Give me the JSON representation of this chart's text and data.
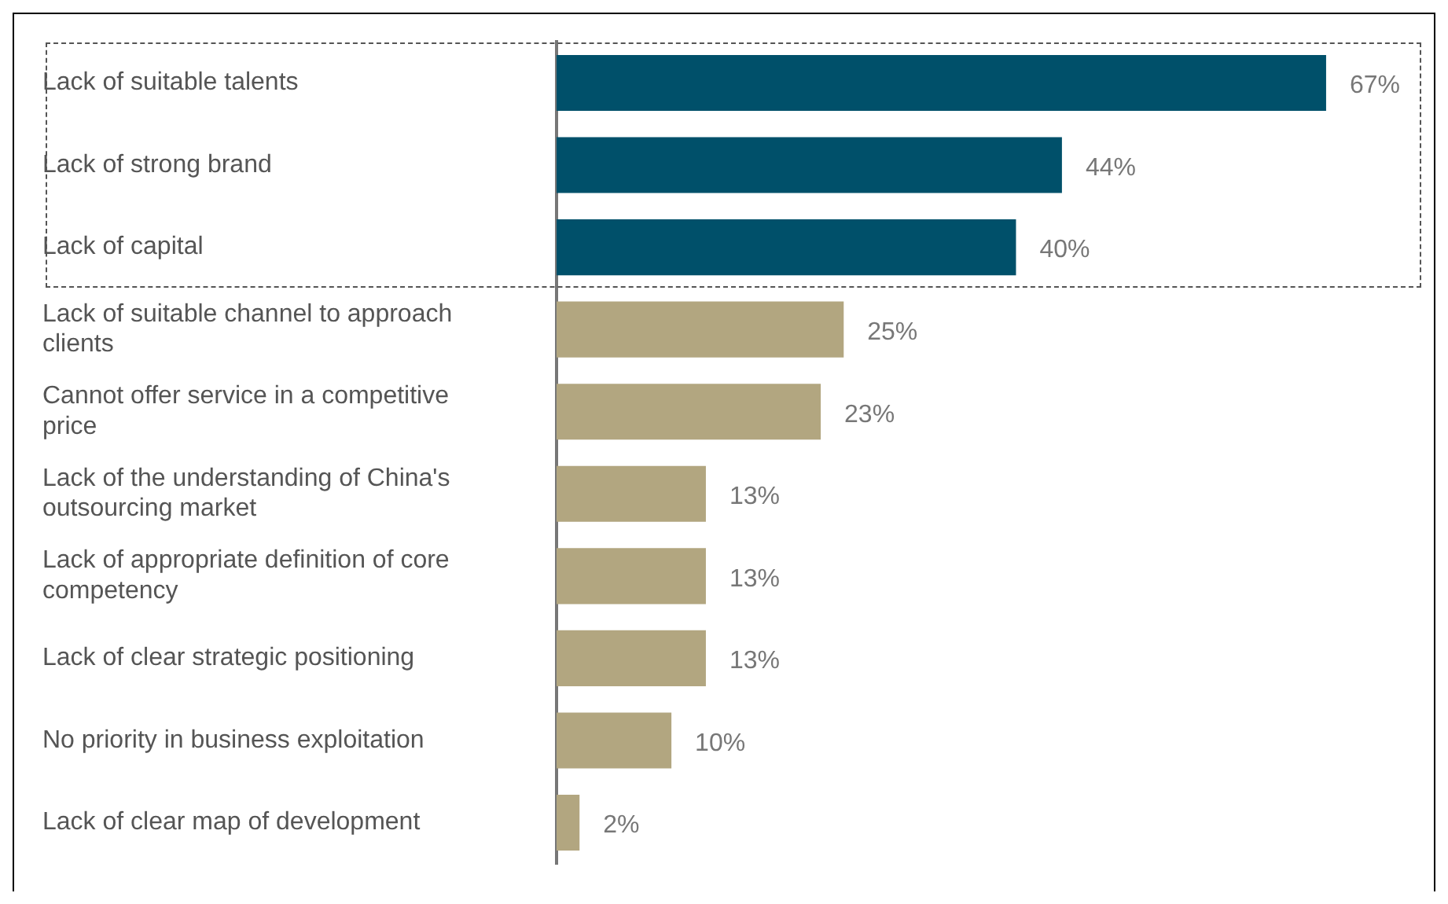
{
  "chart_data": {
    "type": "bar",
    "orientation": "horizontal",
    "categories": [
      "Lack of suitable talents",
      "Lack of strong brand",
      "Lack of capital",
      "Lack of suitable channel to approach clients",
      "Cannot offer service in a competitive price",
      "Lack of the understanding of China's outsourcing market",
      "Lack of appropriate definition of core competency",
      "Lack of clear strategic positioning",
      "No priority in business exploitation",
      "Lack of clear map of development"
    ],
    "values": [
      67,
      44,
      40,
      25,
      23,
      13,
      13,
      13,
      10,
      2
    ],
    "colors": [
      "#00506a",
      "#00506a",
      "#00506a",
      "#b2a680",
      "#b2a680",
      "#b2a680",
      "#b2a680",
      "#b2a680",
      "#b2a680",
      "#b2a680"
    ],
    "value_labels": [
      "67%",
      "44%",
      "40%",
      "25%",
      "23%",
      "13%",
      "13%",
      "13%",
      "10%",
      "2%"
    ],
    "legend": false
  }
}
